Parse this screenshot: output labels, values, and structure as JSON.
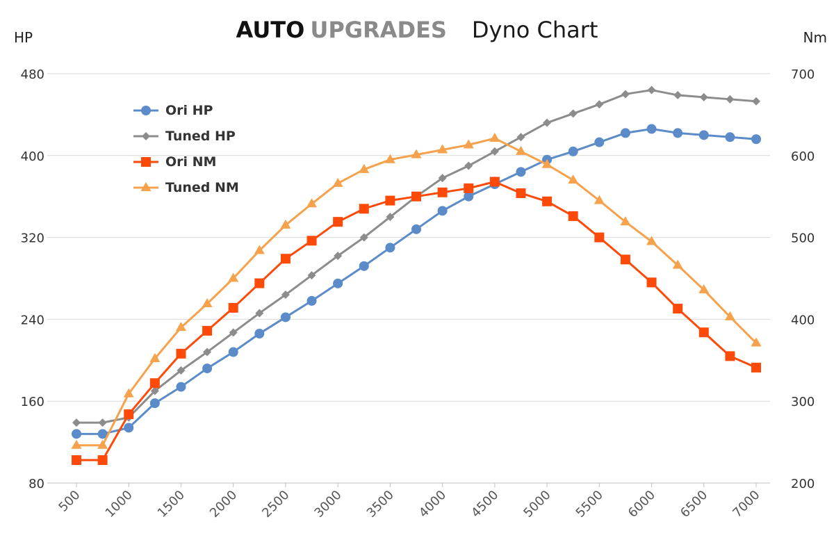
{
  "header": {
    "brand_bold": "AUTO",
    "brand_grey": "UPGRADES",
    "subtitle": "Dyno Chart"
  },
  "axes": {
    "left_unit": "HP",
    "right_unit": "Nm"
  },
  "colors": {
    "ori_hp": "#5b8cc9",
    "tuned_hp": "#8c8c8c",
    "ori_nm": "#fe4a09",
    "tuned_nm": "#f6a14b",
    "grid": "#d9d9d9"
  },
  "chart_data": {
    "type": "line",
    "x": [
      500,
      750,
      1000,
      1250,
      1500,
      1750,
      2000,
      2250,
      2500,
      2750,
      3000,
      3250,
      3500,
      3750,
      4000,
      4250,
      4500,
      4750,
      5000,
      5250,
      5500,
      5750,
      6000,
      6250,
      6500,
      6750,
      7000
    ],
    "x_tick_labels": [
      "500",
      "1000",
      "1500",
      "2000",
      "2500",
      "3000",
      "3500",
      "4000",
      "4500",
      "5000",
      "5500",
      "6000",
      "6500",
      "7000"
    ],
    "x_ticks": [
      500,
      1000,
      1500,
      2000,
      2500,
      3000,
      3500,
      4000,
      4500,
      5000,
      5500,
      6000,
      6500,
      7000
    ],
    "ylabel": "HP",
    "y2label": "Nm",
    "ylim": [
      80,
      480
    ],
    "y_ticks": [
      80,
      160,
      240,
      320,
      400,
      480
    ],
    "y2lim": [
      200,
      700
    ],
    "y2_ticks": [
      200,
      300,
      400,
      500,
      600,
      700
    ],
    "grid": true,
    "legend_position": "top-left",
    "series": [
      {
        "name": "Ori HP",
        "axis": "left",
        "marker": "circle",
        "color": "#5b8cc9",
        "values": [
          128,
          128,
          134,
          158,
          174,
          192,
          208,
          226,
          242,
          258,
          275,
          292,
          310,
          328,
          346,
          360,
          372,
          384,
          396,
          404,
          413,
          422,
          426,
          422,
          420,
          418,
          416
        ]
      },
      {
        "name": "Tuned HP",
        "axis": "left",
        "marker": "diamond",
        "color": "#8c8c8c",
        "values": [
          139,
          139,
          144,
          170,
          190,
          208,
          227,
          246,
          264,
          283,
          302,
          320,
          340,
          360,
          378,
          390,
          404,
          418,
          432,
          441,
          450,
          460,
          464,
          459,
          457,
          455,
          453
        ]
      },
      {
        "name": "Ori NM",
        "axis": "right",
        "marker": "square",
        "color": "#fe4a09",
        "values": [
          228,
          228,
          284,
          322,
          358,
          386,
          414,
          444,
          474,
          496,
          519,
          535,
          545,
          550,
          555,
          560,
          568,
          554,
          544,
          526,
          500,
          473,
          445,
          413,
          384,
          355,
          341
        ]
      },
      {
        "name": "Tuned NM",
        "axis": "right",
        "marker": "triangle",
        "color": "#f6a14b",
        "values": [
          246,
          246,
          309,
          352,
          390,
          419,
          450,
          484,
          515,
          541,
          566,
          583,
          595,
          601,
          607,
          613,
          621,
          605,
          589,
          570,
          545,
          519,
          495,
          466,
          436,
          403,
          371
        ]
      }
    ]
  }
}
